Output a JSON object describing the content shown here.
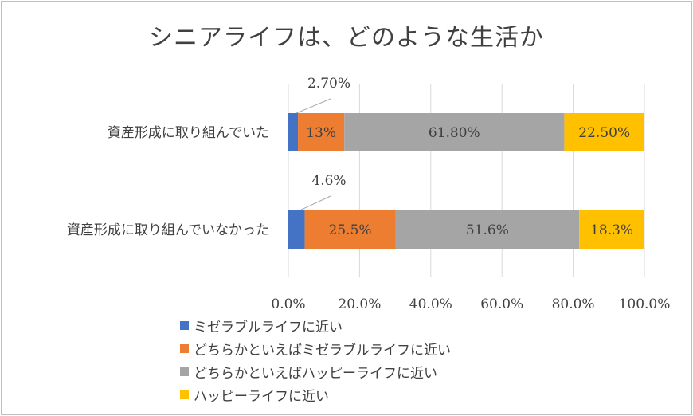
{
  "chart_data": {
    "type": "bar",
    "orientation": "horizontal",
    "stacked": true,
    "title": "シニアライフは、どのような生活か",
    "categories": [
      "資産形成に取り組んでいた",
      "資産形成に取り組んでいなかった"
    ],
    "series": [
      {
        "name": "ミゼラブルライフに近い",
        "color": "#4472C4",
        "values": [
          2.7,
          4.6
        ],
        "labels": [
          "2.70%",
          "4.6%"
        ]
      },
      {
        "name": "どちらかといえばミゼラブルライフに近い",
        "color": "#ED7D31",
        "values": [
          13,
          25.5
        ],
        "labels": [
          "13%",
          "25.5%"
        ]
      },
      {
        "name": "どちらかといえばハッピーライフに近い",
        "color": "#A5A5A5",
        "values": [
          61.8,
          51.6
        ],
        "labels": [
          "61.80%",
          "51.6%"
        ]
      },
      {
        "name": "ハッピーライフに近い",
        "color": "#FFC000",
        "values": [
          22.5,
          18.3
        ],
        "labels": [
          "22.50%",
          "18.3%"
        ]
      }
    ],
    "xlim": [
      0,
      100
    ],
    "xticks": [
      "0.0%",
      "20.0%",
      "40.0%",
      "60.0%",
      "80.0%",
      "100.0%"
    ],
    "grid": true,
    "legend": "bottom-left"
  }
}
